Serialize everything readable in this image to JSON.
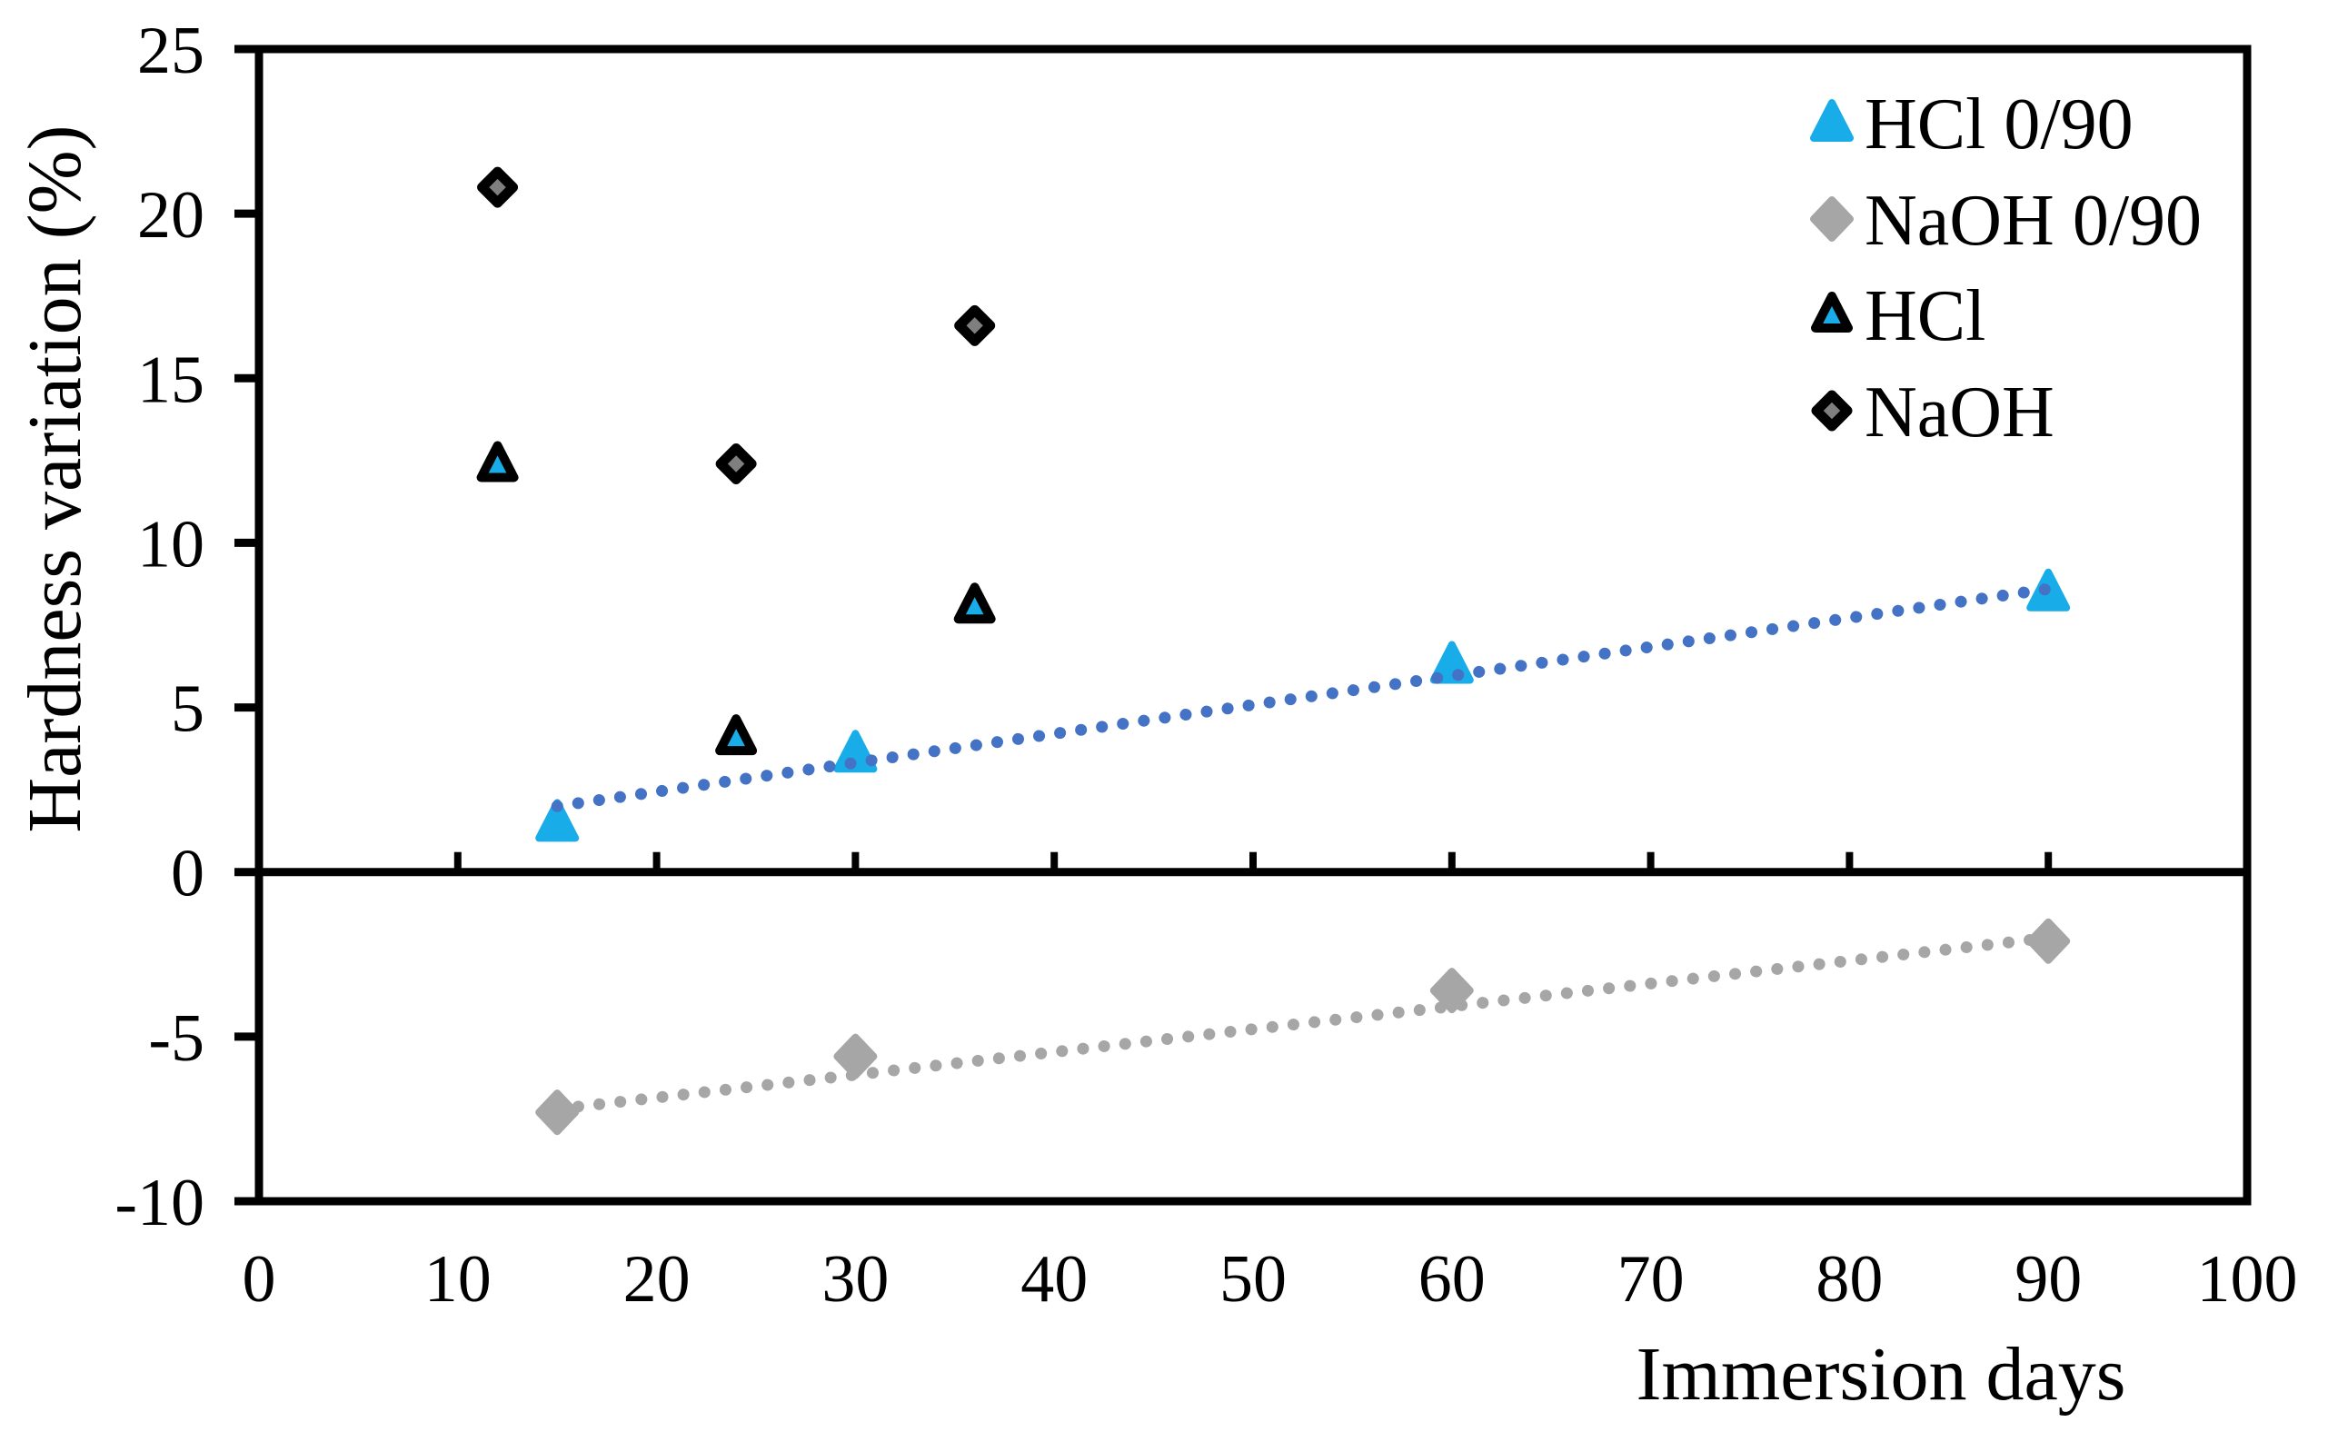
{
  "chart_data": {
    "type": "scatter",
    "title": "",
    "xlabel": "Immersion days",
    "ylabel": "Hardness variation (%)",
    "xlim": [
      0,
      100
    ],
    "ylim": [
      -10,
      25
    ],
    "x_ticks": [
      0,
      10,
      20,
      30,
      40,
      50,
      60,
      70,
      80,
      90,
      100
    ],
    "y_ticks": [
      25,
      20,
      15,
      10,
      5,
      0,
      -5,
      -10
    ],
    "grid": false,
    "axis_color": "#000000",
    "background_color": "#ffffff",
    "legend": {
      "position": "top-right",
      "items": [
        "HCl 0/90",
        "NaOH 0/90",
        "HCl",
        "NaOH"
      ]
    },
    "series": [
      {
        "name": "HCl 0/90",
        "marker": "triangle",
        "fill": "#18ACE8",
        "outline": null,
        "points": [
          [
            15,
            1.5
          ],
          [
            30,
            3.6
          ],
          [
            60,
            6.3
          ],
          [
            90,
            8.5
          ]
        ]
      },
      {
        "name": "NaOH 0/90",
        "marker": "diamond",
        "fill": "#A6A6A6",
        "outline": null,
        "points": [
          [
            15,
            -7.3
          ],
          [
            30,
            -5.6
          ],
          [
            60,
            -3.6
          ],
          [
            90,
            -2.1
          ]
        ]
      },
      {
        "name": "HCl",
        "marker": "triangle",
        "fill": "#18ACE8",
        "outline": "#000000",
        "points": [
          [
            12,
            12.4
          ],
          [
            24,
            4.1
          ],
          [
            36,
            8.1
          ]
        ]
      },
      {
        "name": "NaOH",
        "marker": "diamond",
        "fill": "#7F7F7F",
        "outline": "#000000",
        "points": [
          [
            12,
            20.8
          ],
          [
            24,
            12.4
          ],
          [
            36,
            16.6
          ]
        ]
      }
    ],
    "trendlines": [
      {
        "for": "HCl 0/90",
        "style": "dotted",
        "color": "#4472C4",
        "from": [
          15,
          2.0
        ],
        "to": [
          90,
          8.6
        ]
      },
      {
        "for": "NaOH 0/90",
        "style": "dotted",
        "color": "#A6A6A6",
        "from": [
          15,
          -7.2
        ],
        "to": [
          90,
          -2.0
        ]
      }
    ]
  }
}
